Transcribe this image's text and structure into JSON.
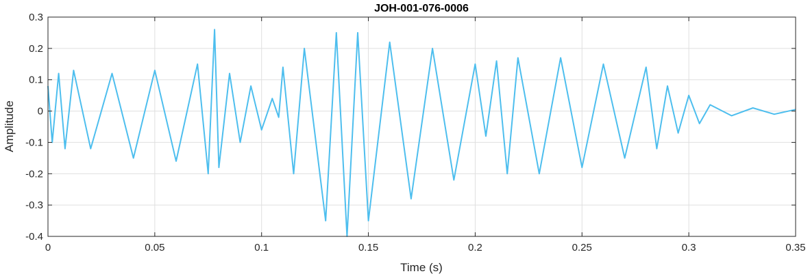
{
  "chart_data": {
    "type": "line",
    "title": "JOH-001-076-0006",
    "xlabel": "Time (s)",
    "ylabel": "Amplitude",
    "xlim": [
      0,
      0.35
    ],
    "ylim": [
      -0.4,
      0.3
    ],
    "xticks": [
      0,
      0.05,
      0.1,
      0.15,
      0.2,
      0.25,
      0.3,
      0.35
    ],
    "xtick_labels": [
      "0",
      "0.05",
      "0.1",
      "0.15",
      "0.2",
      "0.25",
      "0.3",
      "0.35"
    ],
    "yticks": [
      -0.4,
      -0.3,
      -0.2,
      -0.1,
      0,
      0.1,
      0.2,
      0.3
    ],
    "ytick_labels": [
      "-0.4",
      "-0.3",
      "-0.2",
      "-0.1",
      "0",
      "0.1",
      "0.2",
      "0.3"
    ],
    "grid": true,
    "line_color": "#4DBEEE",
    "series": [
      {
        "x": [
          0,
          0.002,
          0.005,
          0.008,
          0.012,
          0.02,
          0.03,
          0.04,
          0.05,
          0.06,
          0.07,
          0.075,
          0.078,
          0.08,
          0.085,
          0.09,
          0.095,
          0.1,
          0.105,
          0.108,
          0.11,
          0.115,
          0.12,
          0.13,
          0.135,
          0.14,
          0.145,
          0.15,
          0.16,
          0.17,
          0.18,
          0.19,
          0.2,
          0.205,
          0.21,
          0.215,
          0.22,
          0.23,
          0.24,
          0.25,
          0.26,
          0.27,
          0.28,
          0.285,
          0.29,
          0.295,
          0.3,
          0.305,
          0.31,
          0.32,
          0.33,
          0.34,
          0.35
        ],
        "y": [
          0.08,
          -0.1,
          0.12,
          -0.12,
          0.13,
          -0.12,
          0.12,
          -0.15,
          0.13,
          -0.16,
          0.15,
          -0.2,
          0.26,
          -0.18,
          0.12,
          -0.1,
          0.08,
          -0.06,
          0.04,
          -0.02,
          0.14,
          -0.2,
          0.2,
          -0.35,
          0.25,
          -0.4,
          0.25,
          -0.35,
          0.22,
          -0.28,
          0.2,
          -0.22,
          0.15,
          -0.08,
          0.16,
          -0.2,
          0.17,
          -0.2,
          0.17,
          -0.18,
          0.15,
          -0.15,
          0.14,
          -0.12,
          0.08,
          -0.07,
          0.05,
          -0.04,
          0.02,
          -0.015,
          0.01,
          -0.01,
          0.005
        ]
      }
    ]
  }
}
